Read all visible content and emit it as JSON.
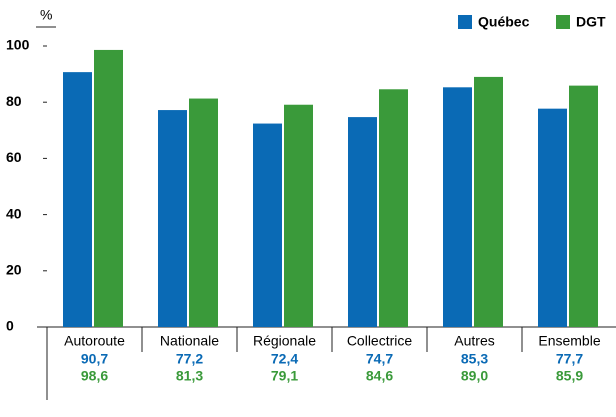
{
  "chart_data": {
    "type": "bar",
    "y_label": "%",
    "categories": [
      "Autoroute",
      "Nationale",
      "Régionale",
      "Collectrice",
      "Autres",
      "Ensemble"
    ],
    "series": [
      {
        "name": "Québec",
        "color": "#0a6ab5",
        "values": [
          90.7,
          77.2,
          72.4,
          74.7,
          85.3,
          77.7
        ],
        "value_labels": [
          "90,7",
          "77,2",
          "72,4",
          "74,7",
          "85,3",
          "77,7"
        ]
      },
      {
        "name": "DGT",
        "color": "#3a9a3a",
        "values": [
          98.6,
          81.3,
          79.1,
          84.6,
          89.0,
          85.9
        ],
        "value_labels": [
          "98,6",
          "81,3",
          "79,1",
          "84,6",
          "89,0",
          "85,9"
        ]
      }
    ],
    "ylim": [
      0,
      100
    ],
    "yticks": [
      0,
      20,
      40,
      60,
      80,
      100
    ],
    "legend": "top-right"
  }
}
